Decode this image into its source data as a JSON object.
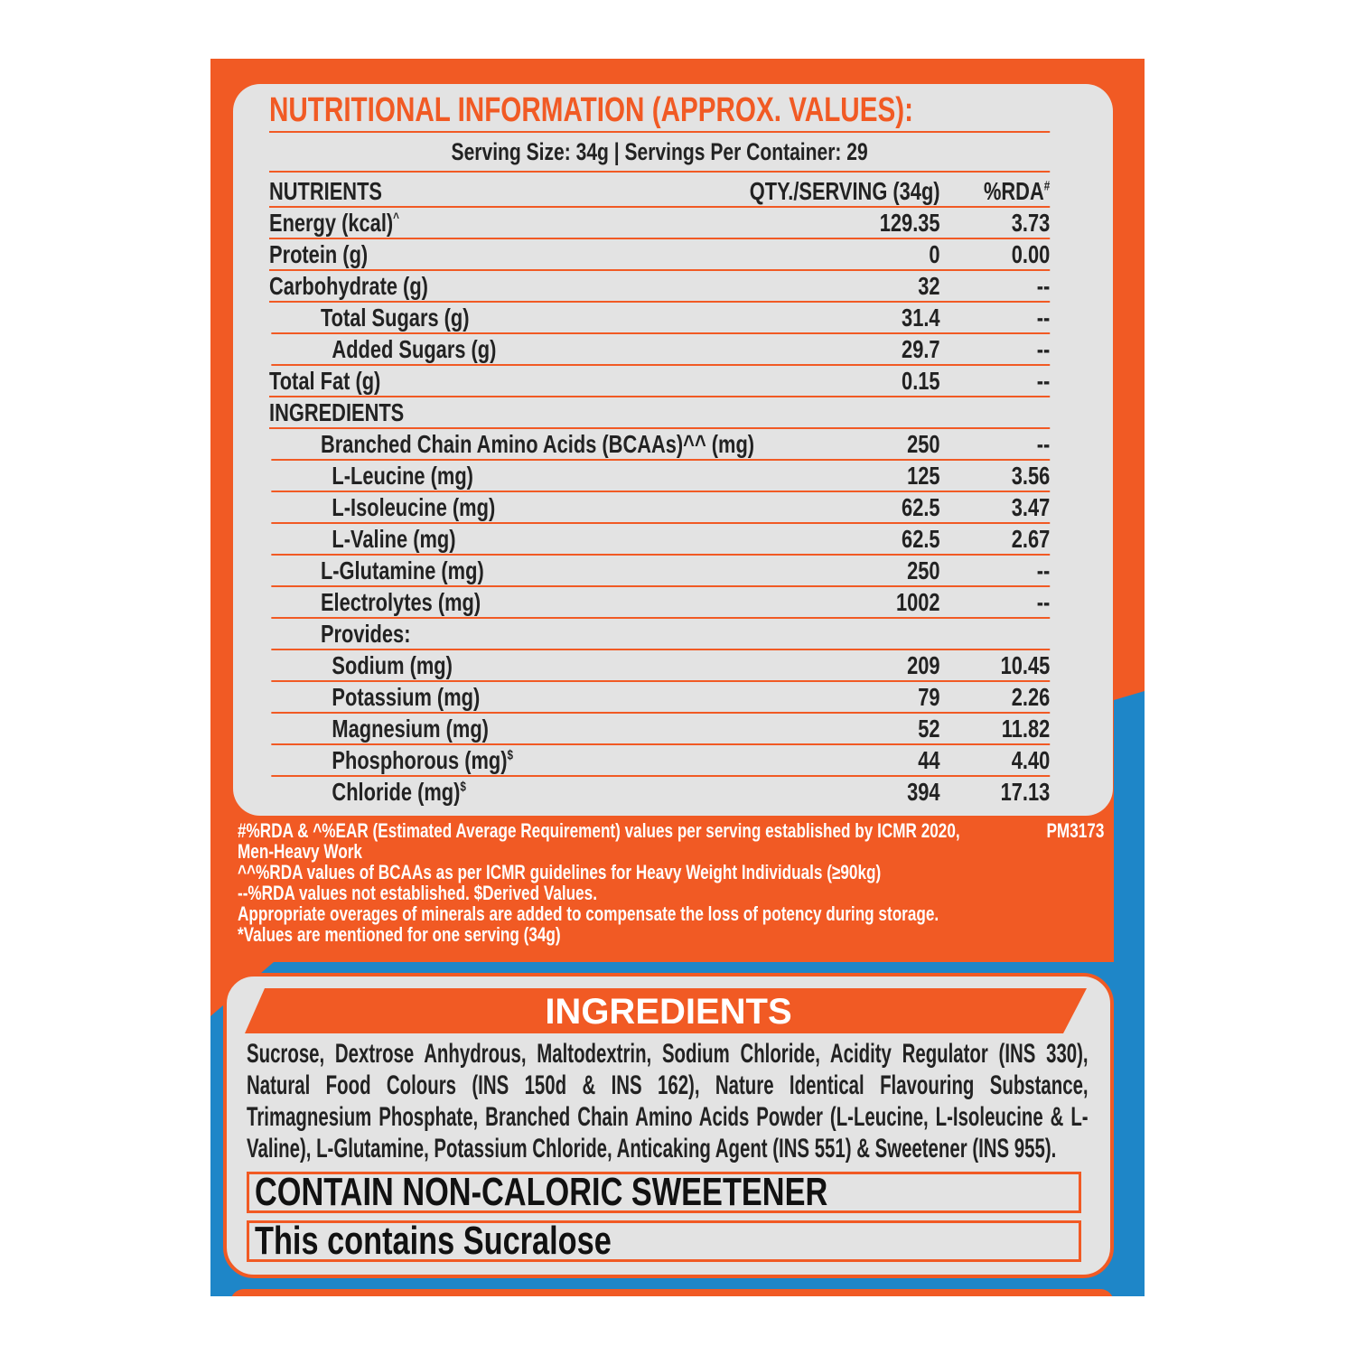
{
  "title": "NUTRITIONAL INFORMATION (APPROX. VALUES):",
  "serving": "Serving Size: 34g | Servings Per Container: 29",
  "header": {
    "nutrients": "NUTRIENTS",
    "qty": "QTY./SERVING (34g)",
    "rda": "%RDA",
    "rda_sup": "#"
  },
  "rows": [
    {
      "name": "Energy (kcal)",
      "sup": "^",
      "qty": "129.35",
      "rda": "3.73",
      "indent": 0
    },
    {
      "name": "Protein (g)",
      "qty": "0",
      "rda": "0.00",
      "indent": 0
    },
    {
      "name": "Carbohydrate (g)",
      "qty": "32",
      "rda": "--",
      "indent": 0
    },
    {
      "name": "Total Sugars (g)",
      "qty": "31.4",
      "rda": "--",
      "indent": 1
    },
    {
      "name": "Added Sugars (g)",
      "qty": "29.7",
      "rda": "--",
      "indent": 2
    },
    {
      "name": "Total Fat (g)",
      "qty": "0.15",
      "rda": "--",
      "indent": 0
    },
    {
      "name": "INGREDIENTS",
      "qty": "",
      "rda": "",
      "indent": 0
    },
    {
      "name": "Branched Chain Amino Acids (BCAAs)^^ (mg)",
      "qty": "250",
      "rda": "--",
      "indent": 1
    },
    {
      "name": "L-Leucine (mg)",
      "qty": "125",
      "rda": "3.56",
      "indent": 2
    },
    {
      "name": "L-Isoleucine (mg)",
      "qty": "62.5",
      "rda": "3.47",
      "indent": 2
    },
    {
      "name": "L-Valine (mg)",
      "qty": "62.5",
      "rda": "2.67",
      "indent": 2
    },
    {
      "name": "L-Glutamine (mg)",
      "qty": "250",
      "rda": "--",
      "indent": 1
    },
    {
      "name": "Electrolytes (mg)",
      "qty": "1002",
      "rda": "--",
      "indent": 1
    },
    {
      "name": "Provides:",
      "qty": "",
      "rda": "",
      "indent": 1
    },
    {
      "name": "Sodium (mg)",
      "qty": "209",
      "rda": "10.45",
      "indent": 2
    },
    {
      "name": "Potassium (mg)",
      "qty": "79",
      "rda": "2.26",
      "indent": 2
    },
    {
      "name": "Magnesium (mg)",
      "qty": "52",
      "rda": "11.82",
      "indent": 2
    },
    {
      "name": "Phosphorous (mg)",
      "sup": "$",
      "qty": "44",
      "rda": "4.40",
      "indent": 2
    },
    {
      "name": "Chloride (mg)",
      "sup": "$",
      "qty": "394",
      "rda": "17.13",
      "indent": 2
    }
  ],
  "footnotes": [
    "#%RDA & ^%EAR (Estimated Average Requirement) values per serving established by ICMR 2020,",
    "Men-Heavy Work",
    "^^%RDA values of BCAAs as per ICMR guidelines for Heavy Weight Individuals (≥90kg)",
    "--%RDA values not established. $Derived Values.",
    "Appropriate overages of minerals are added to compensate the loss of potency during storage.",
    "*Values are mentioned for one serving (34g)"
  ],
  "code": "PM3173",
  "ingredients": {
    "title": "INGREDIENTS",
    "text": "Sucrose, Dextrose Anhydrous, Maltodextrin, Sodium Chloride, Acidity Regulator (INS 330), Natural Food Colours (INS 150d & INS 162), Nature Identical Flavouring Substance, Trimagnesium Phosphate, Branched Chain Amino Acids Powder (L-Leucine, L-Isoleucine & L-Valine), L-Glutamine, Potassium Chloride, Anticaking Agent (INS 551) & Sweetener (INS 955).",
    "warning": "CONTAIN NON-CALORIC SWEETENER",
    "sweetener": "This contains Sucralose"
  },
  "colors": {
    "orange": "#f15a24",
    "blue": "#1e86c8",
    "panel": "#e3e3e3"
  }
}
